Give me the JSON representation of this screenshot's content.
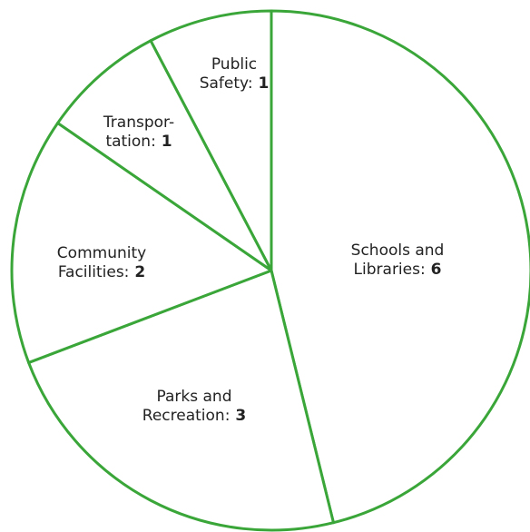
{
  "chart_data": {
    "type": "pie",
    "slices": [
      {
        "label_lines": [
          "Schools and",
          "Libraries:"
        ],
        "value": 6
      },
      {
        "label_lines": [
          "Parks and",
          "Recreation:"
        ],
        "value": 3
      },
      {
        "label_lines": [
          "Community",
          "Facilities:"
        ],
        "value": 2
      },
      {
        "label_lines": [
          "Transpor-",
          "tation:"
        ],
        "value": 1
      },
      {
        "label_lines": [
          "Public",
          "Safety:"
        ],
        "value": 1
      }
    ],
    "start": "top",
    "direction": "clockwise",
    "legend": "none"
  },
  "colors": {
    "stroke": "#3aa639",
    "fill": "#ffffff",
    "text": "#222222"
  }
}
